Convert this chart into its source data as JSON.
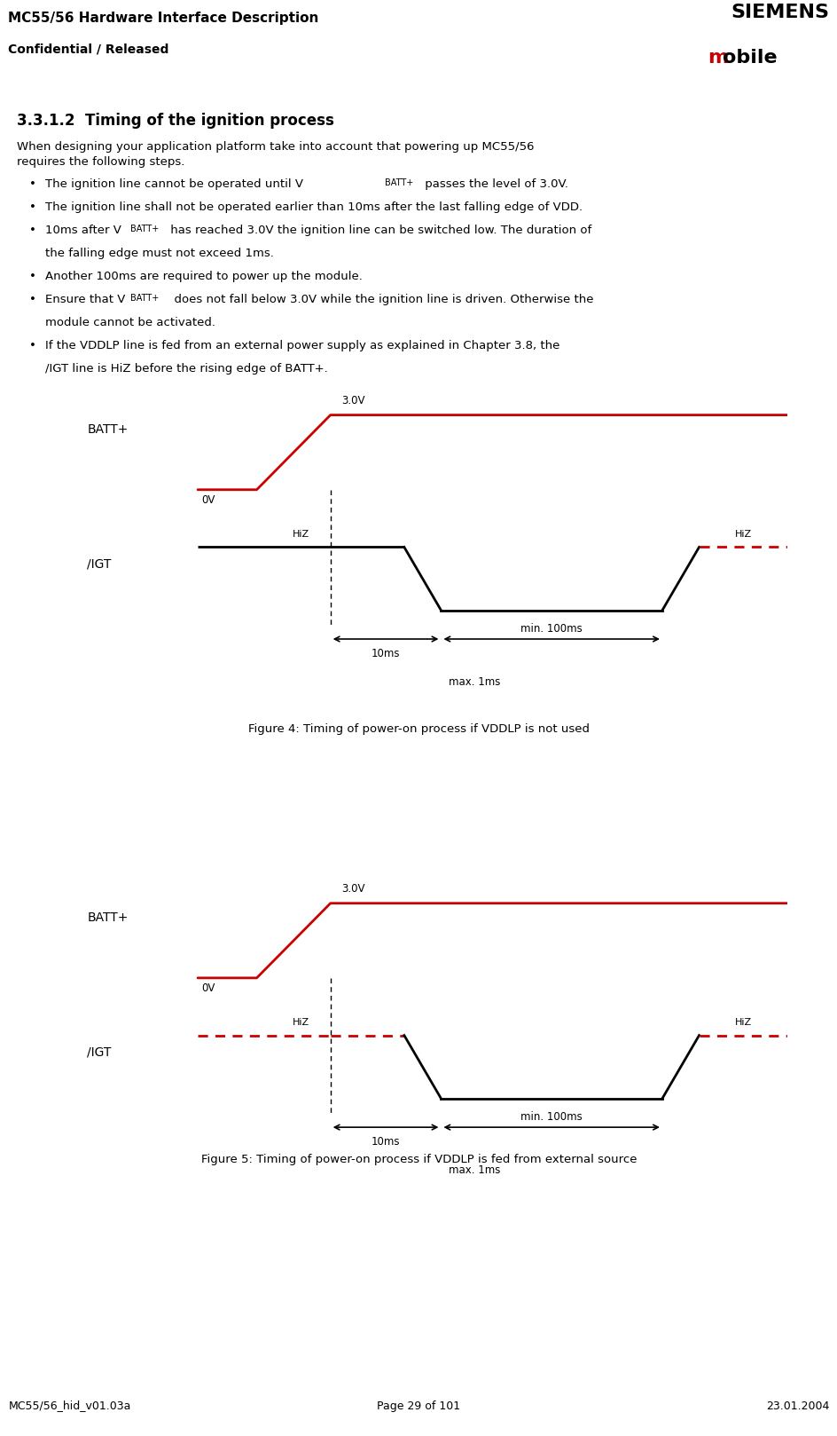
{
  "title_header": "MC55/56 Hardware Interface Description",
  "subtitle_header": "Confidential / Released",
  "siemens_text": "SIEMENS",
  "mobile_text": "mobile",
  "section_title": "3.3.1.2  Timing of the ignition process",
  "body_text": "When designing your application platform take into account that powering up MC55/56\nrequires the following steps.",
  "bullets": [
    "The ignition line cannot be operated until V$_{BATT+}$ passes the level of 3.0V.",
    "The ignition line shall not be operated earlier than 10ms after the last falling edge of VDD.",
    "10ms after V$_{BATT+}$ has reached 3.0V the ignition line can be switched low. The duration of\nthe falling edge must not exceed 1ms.",
    "Another 100ms are required to power up the module.",
    "Ensure that V$_{BATT+}$  does not fall below 3.0V while the ignition line is driven. Otherwise the\nmodule cannot be activated.",
    "If the VDDLP line is fed from an external power supply as explained in Chapter 3.8, the\n/IGT line is HiZ before the rising edge of BATT+."
  ],
  "fig4_caption": "Figure 4: Timing of power-on process if VDDLP is not used",
  "fig5_caption": "Figure 5: Timing of power-on process if VDDLP is fed from external source",
  "footer_left": "MC55/56_hid_v01.03a",
  "footer_center": "Page 29 of 101",
  "footer_right": "23.01.2004",
  "red_color": "#CC0000",
  "black_color": "#000000",
  "gray_color": "#AAAAAA",
  "bg_color": "#FFFFFF"
}
